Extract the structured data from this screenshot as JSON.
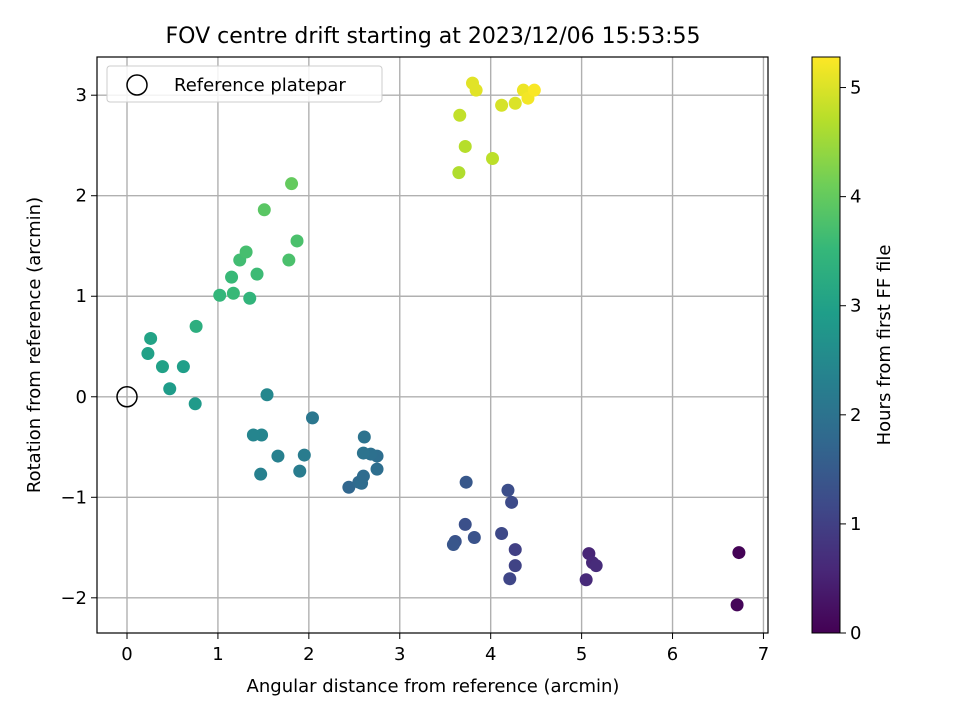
{
  "chart_data": {
    "type": "scatter",
    "title": "FOV centre drift starting at 2023/12/06 15:53:55",
    "xlabel": "Angular distance from reference (arcmin)",
    "ylabel": "Rotation from reference (arcmin)",
    "xlim": [
      -0.33,
      7.05
    ],
    "ylim": [
      -2.35,
      3.38
    ],
    "x_ticks": [
      0,
      1,
      2,
      3,
      4,
      5,
      6,
      7
    ],
    "x_tick_labels": [
      "0",
      "1",
      "2",
      "3",
      "4",
      "5",
      "6",
      "7"
    ],
    "y_ticks": [
      -2,
      -1,
      0,
      1,
      2,
      3
    ],
    "y_tick_labels": [
      "−2",
      "−1",
      "0",
      "1",
      "2",
      "3"
    ],
    "grid": true,
    "legend": {
      "placement": "top-left",
      "entries": [
        {
          "label": "Reference platepar",
          "marker": "open-circle"
        }
      ]
    },
    "reference_point": {
      "x": 0,
      "y": 0
    },
    "colorbar": {
      "label": "Hours from first FF file",
      "colormap": "viridis",
      "range": [
        0,
        5.28
      ],
      "ticks": [
        0,
        1,
        2,
        3,
        4,
        5
      ],
      "tick_labels": [
        "0",
        "1",
        "2",
        "3",
        "4",
        "5"
      ],
      "stops": [
        "#440154",
        "#482878",
        "#3e4a89",
        "#31688e",
        "#26828e",
        "#1f9e89",
        "#35b779",
        "#6ece58",
        "#b5de2b",
        "#fde725"
      ]
    },
    "series": [
      {
        "points": [
          {
            "x": 6.73,
            "y": -1.55,
            "t": 0.03
          },
          {
            "x": 6.71,
            "y": -2.07,
            "t": 0.08
          },
          {
            "x": 5.08,
            "y": -1.56,
            "t": 0.55
          },
          {
            "x": 5.05,
            "y": -1.82,
            "t": 0.62
          },
          {
            "x": 5.12,
            "y": -1.65,
            "t": 0.6
          },
          {
            "x": 5.16,
            "y": -1.68,
            "t": 0.65
          },
          {
            "x": 4.27,
            "y": -1.52,
            "t": 1.0
          },
          {
            "x": 4.27,
            "y": -1.68,
            "t": 1.05
          },
          {
            "x": 4.21,
            "y": -1.81,
            "t": 1.1
          },
          {
            "x": 4.12,
            "y": -1.36,
            "t": 1.15
          },
          {
            "x": 4.23,
            "y": -1.05,
            "t": 1.2
          },
          {
            "x": 4.19,
            "y": -0.93,
            "t": 1.25
          },
          {
            "x": 3.72,
            "y": -1.27,
            "t": 1.3
          },
          {
            "x": 3.82,
            "y": -1.4,
            "t": 1.35
          },
          {
            "x": 3.61,
            "y": -1.44,
            "t": 1.35
          },
          {
            "x": 3.59,
            "y": -1.47,
            "t": 1.4
          },
          {
            "x": 3.73,
            "y": -0.85,
            "t": 1.45
          },
          {
            "x": 2.44,
            "y": -0.9,
            "t": 1.75
          },
          {
            "x": 2.55,
            "y": -0.85,
            "t": 1.8
          },
          {
            "x": 2.58,
            "y": -0.86,
            "t": 1.85
          },
          {
            "x": 2.6,
            "y": -0.79,
            "t": 1.85
          },
          {
            "x": 2.75,
            "y": -0.72,
            "t": 1.9
          },
          {
            "x": 2.75,
            "y": -0.59,
            "t": 1.9
          },
          {
            "x": 2.68,
            "y": -0.57,
            "t": 1.95
          },
          {
            "x": 2.6,
            "y": -0.56,
            "t": 2.0
          },
          {
            "x": 2.61,
            "y": -0.4,
            "t": 2.0
          },
          {
            "x": 2.04,
            "y": -0.21,
            "t": 2.1
          },
          {
            "x": 1.95,
            "y": -0.58,
            "t": 2.2
          },
          {
            "x": 1.9,
            "y": -0.74,
            "t": 2.2
          },
          {
            "x": 1.66,
            "y": -0.59,
            "t": 2.3
          },
          {
            "x": 1.47,
            "y": -0.77,
            "t": 2.3
          },
          {
            "x": 1.48,
            "y": -0.38,
            "t": 2.4
          },
          {
            "x": 1.39,
            "y": -0.38,
            "t": 2.4
          },
          {
            "x": 1.54,
            "y": 0.02,
            "t": 2.45
          },
          {
            "x": 0.75,
            "y": -0.07,
            "t": 2.85
          },
          {
            "x": 0.47,
            "y": 0.08,
            "t": 2.9
          },
          {
            "x": 0.62,
            "y": 0.3,
            "t": 2.95
          },
          {
            "x": 0.39,
            "y": 0.3,
            "t": 3.0
          },
          {
            "x": 0.23,
            "y": 0.43,
            "t": 3.0
          },
          {
            "x": 0.26,
            "y": 0.58,
            "t": 3.05
          },
          {
            "x": 0.76,
            "y": 0.7,
            "t": 3.3
          },
          {
            "x": 1.35,
            "y": 0.98,
            "t": 3.45
          },
          {
            "x": 1.02,
            "y": 1.01,
            "t": 3.5
          },
          {
            "x": 1.17,
            "y": 1.03,
            "t": 3.55
          },
          {
            "x": 1.15,
            "y": 1.19,
            "t": 3.55
          },
          {
            "x": 1.43,
            "y": 1.22,
            "t": 3.6
          },
          {
            "x": 1.24,
            "y": 1.36,
            "t": 3.65
          },
          {
            "x": 1.31,
            "y": 1.44,
            "t": 3.7
          },
          {
            "x": 1.78,
            "y": 1.36,
            "t": 3.75
          },
          {
            "x": 1.87,
            "y": 1.55,
            "t": 3.75
          },
          {
            "x": 1.51,
            "y": 1.86,
            "t": 3.9
          },
          {
            "x": 1.81,
            "y": 2.12,
            "t": 4.0
          },
          {
            "x": 3.65,
            "y": 2.23,
            "t": 4.65
          },
          {
            "x": 3.72,
            "y": 2.49,
            "t": 4.7
          },
          {
            "x": 4.02,
            "y": 2.37,
            "t": 4.75
          },
          {
            "x": 3.66,
            "y": 2.8,
            "t": 4.8
          },
          {
            "x": 4.12,
            "y": 2.9,
            "t": 4.95
          },
          {
            "x": 4.27,
            "y": 2.92,
            "t": 5.0
          },
          {
            "x": 3.8,
            "y": 3.12,
            "t": 5.05
          },
          {
            "x": 3.84,
            "y": 3.05,
            "t": 5.05
          },
          {
            "x": 4.36,
            "y": 3.05,
            "t": 5.15
          },
          {
            "x": 4.41,
            "y": 2.97,
            "t": 5.2
          },
          {
            "x": 4.48,
            "y": 3.05,
            "t": 5.25
          }
        ]
      }
    ]
  }
}
